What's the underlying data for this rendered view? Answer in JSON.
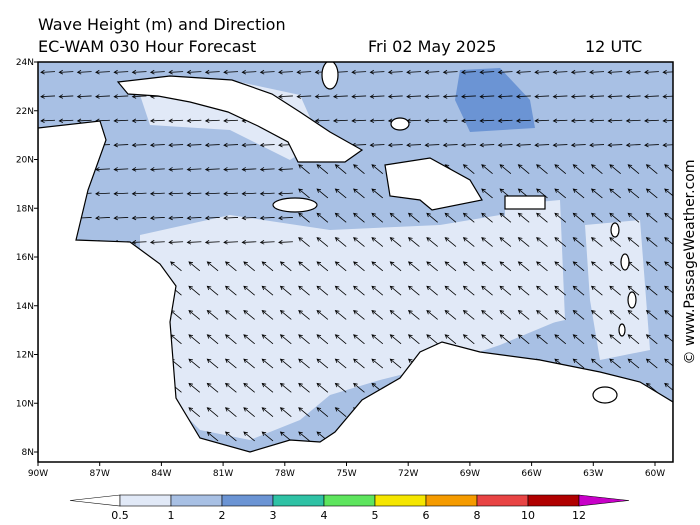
{
  "header": {
    "title": "Wave Height (m) and Direction",
    "model": "EC-WAM 030 Hour Forecast",
    "date": "Fri 02 May 2025",
    "time": "12 UTC"
  },
  "map": {
    "lat_labels": [
      "24N",
      "22N",
      "20N",
      "18N",
      "16N",
      "14N",
      "12N",
      "10N",
      "8N"
    ],
    "lon_labels": [
      "90W",
      "87W",
      "84W",
      "81W",
      "78W",
      "75W",
      "72W",
      "69W",
      "66W",
      "63W",
      "60W"
    ]
  },
  "colorbar": {
    "labels": [
      "0.5",
      "1",
      "2",
      "3",
      "4",
      "5",
      "6",
      "8",
      "10",
      "12"
    ],
    "colors": [
      "#ffffff",
      "#e1e9f7",
      "#a8c0e4",
      "#6b94d4",
      "#2fc2a5",
      "#5ee55e",
      "#f5e600",
      "#f59b00",
      "#e84444",
      "#b00000",
      "#c800c8"
    ]
  },
  "credit": "© www.PassageWeather.com"
}
